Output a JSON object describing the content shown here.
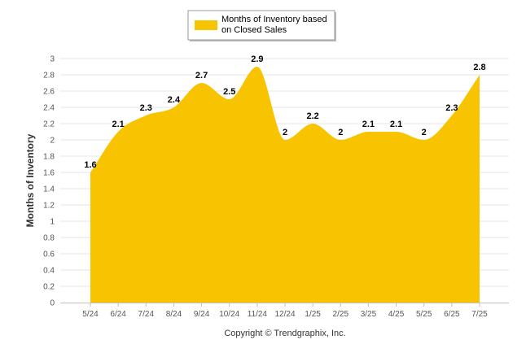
{
  "chart_data": {
    "type": "area",
    "categories": [
      "5/24",
      "6/24",
      "7/24",
      "8/24",
      "9/24",
      "10/24",
      "11/24",
      "12/24",
      "1/25",
      "2/25",
      "3/25",
      "4/25",
      "5/25",
      "6/25",
      "7/25"
    ],
    "series": [
      {
        "name": "Months of Inventory based on Closed Sales",
        "name_lines": [
          "Months of Inventory based",
          "on Closed Sales"
        ],
        "values": [
          1.6,
          2.1,
          2.3,
          2.4,
          2.7,
          2.5,
          2.9,
          2,
          2.2,
          2,
          2.1,
          2.1,
          2,
          2.3,
          2.8
        ],
        "labels": [
          "1.6",
          "2.1",
          "2.3",
          "2.4",
          "2.7",
          "2.5",
          "2.9",
          "2",
          "2.2",
          "2",
          "2.1",
          "2.1",
          "2",
          "2.3",
          "2.8"
        ],
        "color": "#f8c300"
      }
    ],
    "ylabel": "Months of Inventory",
    "xlabel": "",
    "ylim": [
      0,
      3
    ],
    "yticks": [
      0,
      0.2,
      0.4,
      0.6,
      0.8,
      1,
      1.2,
      1.4,
      1.6,
      1.8,
      2,
      2.2,
      2.4,
      2.6,
      2.8,
      3
    ],
    "ytick_labels": [
      "0",
      "0.2",
      "0.4",
      "0.6",
      "0.8",
      "1",
      "1.2",
      "1.4",
      "1.6",
      "1.8",
      "2",
      "2.2",
      "2.4",
      "2.6",
      "2.8",
      "3"
    ],
    "grid": true,
    "legend_position": "top-center"
  },
  "footer": {
    "credit": "Copyright © Trendgraphix, Inc."
  },
  "colors": {
    "area_fill": "#f8c300",
    "grid": "#e6e6e6",
    "axis": "#c0c0c0"
  }
}
